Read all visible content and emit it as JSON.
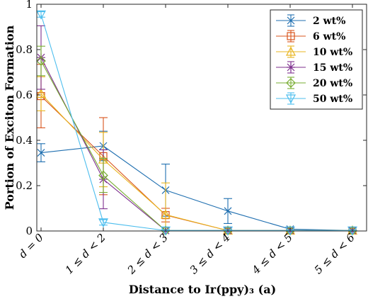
{
  "chart_data": {
    "type": "line",
    "categories": [
      "d = 0",
      "1 ≤ d < 2",
      "2 ≤ d < 3",
      "3 ≤ d < 4",
      "4 ≤ d < 5",
      "5 ≤ d < 6"
    ],
    "xlabel": "Distance to Ir(ppy)₃ (a)",
    "ylabel": "Portion of Exciton Formation",
    "ylim": [
      0,
      1
    ],
    "yticks": [
      "0",
      "0.2",
      "0.4",
      "0.6",
      "0.8",
      "1"
    ],
    "legend_position": "top-right",
    "grid": false,
    "series": [
      {
        "name": "2 wt%",
        "marker": "x",
        "color": "#1f6fb0",
        "values": [
          0.345,
          0.375,
          0.18,
          0.088,
          0.008,
          0.002
        ],
        "errors": [
          0.04,
          0.065,
          0.115,
          0.055,
          0.005,
          0.002
        ]
      },
      {
        "name": "6 wt%",
        "marker": "square",
        "color": "#d9541c",
        "values": [
          0.595,
          0.33,
          0.07,
          0.002,
          0.002,
          0.002
        ],
        "errors": [
          0.14,
          0.17,
          0.03,
          0.003,
          0.002,
          0.002
        ]
      },
      {
        "name": "10 wt%",
        "marker": "triangle-up",
        "color": "#e8b520",
        "values": [
          0.605,
          0.315,
          0.072,
          0.002,
          0.002,
          0.002
        ],
        "errors": [
          0.075,
          0.12,
          0.14,
          0.003,
          0.002,
          0.002
        ]
      },
      {
        "name": "15 wt%",
        "marker": "asterisk",
        "color": "#7d2f8e",
        "values": [
          0.765,
          0.228,
          0.002,
          0.002,
          0.002,
          0.002
        ],
        "errors": [
          0.14,
          0.13,
          0.003,
          0.003,
          0.002,
          0.002
        ]
      },
      {
        "name": "20 wt%",
        "marker": "diamond",
        "color": "#77ac30",
        "values": [
          0.75,
          0.245,
          0.002,
          0.002,
          0.002,
          0.002
        ],
        "errors": [
          0.065,
          0.075,
          0.003,
          0.003,
          0.002,
          0.002
        ]
      },
      {
        "name": "50 wt%",
        "marker": "triangle-down",
        "color": "#4dbeee",
        "values": [
          0.955,
          0.038,
          0.002,
          0.002,
          0.002,
          0.002
        ],
        "errors": [
          0.012,
          0.012,
          0.003,
          0.003,
          0.002,
          0.002
        ]
      }
    ]
  }
}
